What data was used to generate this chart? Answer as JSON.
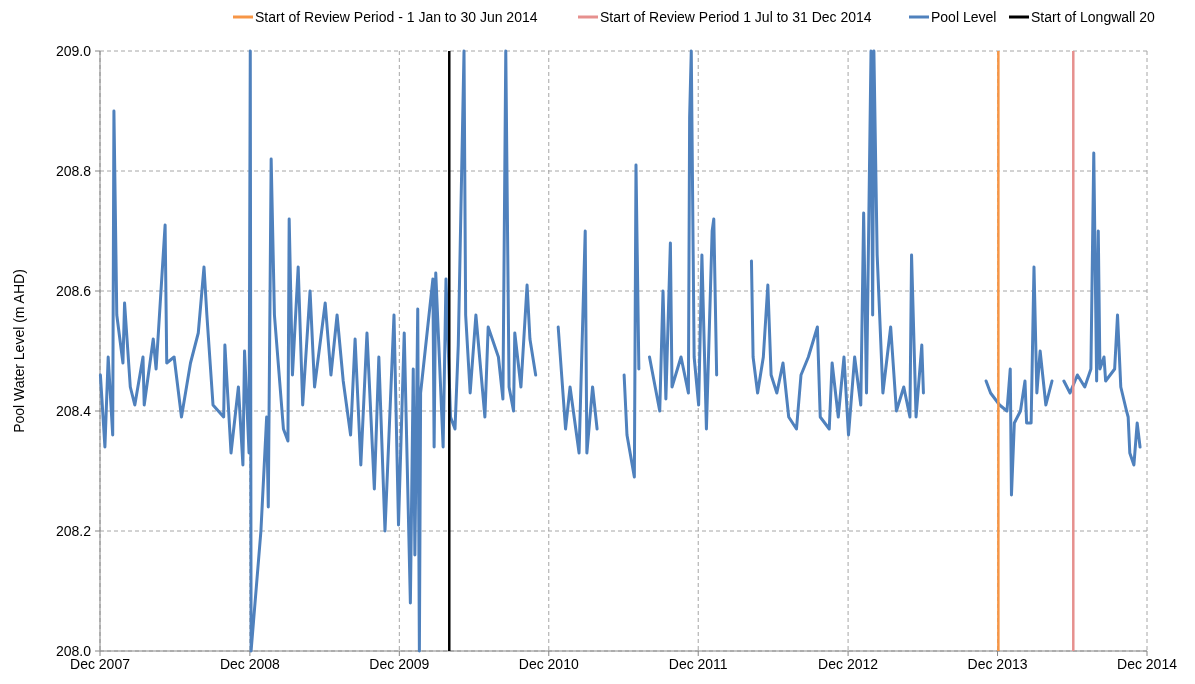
{
  "chart_data": {
    "type": "line",
    "ylabel": "Pool Water Level (m AHD)",
    "xlim": [
      "2007-12-01",
      "2014-12-01"
    ],
    "xticks": [
      {
        "value": "2007-12-01",
        "label": "Dec 2007"
      },
      {
        "value": "2008-12-01",
        "label": "Dec 2008"
      },
      {
        "value": "2009-12-01",
        "label": "Dec 2009"
      },
      {
        "value": "2010-12-01",
        "label": "Dec 2010"
      },
      {
        "value": "2011-12-01",
        "label": "Dec 2011"
      },
      {
        "value": "2012-12-01",
        "label": "Dec 2012"
      },
      {
        "value": "2013-12-01",
        "label": "Dec 2013"
      },
      {
        "value": "2014-12-01",
        "label": "Dec 2014"
      }
    ],
    "ylim": [
      208,
      209
    ],
    "yticks": [
      {
        "value": 208,
        "label": "208.0"
      },
      {
        "value": 208.2,
        "label": "208.2"
      },
      {
        "value": 208.4,
        "label": "208.4"
      },
      {
        "value": 208.6,
        "label": "208.6"
      },
      {
        "value": 208.8,
        "label": "208.8"
      },
      {
        "value": 209,
        "label": "209.0"
      }
    ],
    "grid": true,
    "legend": "top",
    "marker": "none",
    "line_style": "solid",
    "ref_lines": [
      {
        "axis": "x",
        "value": "2013-12-03",
        "label": "Start of Review Period - 1 Jan to 30 Jun 2014",
        "color": "#f79646"
      },
      {
        "axis": "x",
        "value": "2014-06-04",
        "label": "Start of Review Period 1 Jul to 31 Dec 2014",
        "color": "#e6908e"
      },
      {
        "axis": "x",
        "value": "2010-04-02",
        "label": "Start of Longwall 20",
        "color": "#000000"
      }
    ],
    "series": [
      {
        "name": "Pool Level",
        "color": "#4f81bd",
        "x": [
          "2007-12-02",
          "2007-12-13",
          "2007-12-21",
          "2008-01-01",
          "2008-01-04",
          "2008-01-11",
          "2008-01-26",
          "2008-01-30",
          "2008-02-13",
          "2008-02-24",
          "2008-03-15",
          "2008-03-18",
          "2008-04-09",
          "2008-04-16",
          "2008-05-08",
          "2008-05-12",
          "2008-05-30",
          "2008-06-17",
          "2008-07-09",
          "2008-07-28",
          "2008-08-11",
          "2008-08-18",
          "2008-09-02",
          "2008-09-28",
          "2008-10-01",
          "2008-10-16",
          "2008-11-03",
          "2008-11-14",
          "2008-11-18",
          "2008-11-29",
          "2008-12-02",
          "2008-12-04",
          "2008-12-28",
          "2009-01-11",
          "2009-01-15",
          "2009-01-22",
          "2009-01-30",
          "2009-02-21",
          "2009-03-04",
          "2009-03-07",
          "2009-03-15",
          "2009-03-29",
          "2009-04-09",
          "2009-04-27",
          "2009-05-08",
          "2009-06-03",
          "2009-06-17",
          "2009-07-02",
          "2009-07-17",
          "2009-08-04",
          "2009-08-15",
          "2009-08-29",
          "2009-09-13",
          "2009-10-01",
          "2009-10-12",
          "2009-10-27",
          "2009-11-18",
          "2009-11-29",
          "2009-12-13",
          "2009-12-28",
          "2010-01-04",
          "2010-01-08",
          "2010-01-15",
          "2010-01-19",
          "2010-01-22",
          "2010-02-21",
          "2010-02-24",
          "2010-02-28",
          "2010-03-18",
          "2010-03-25",
          "2010-04-05",
          "2010-04-16",
          "2010-04-24",
          "2010-05-08",
          "2010-05-12",
          "2010-05-23",
          "2010-06-06",
          "2010-06-28",
          "2010-07-06",
          "2010-07-31",
          "2010-08-11",
          "2010-08-18",
          "2010-08-26",
          "2010-09-06",
          "2010-09-09",
          "2010-09-24",
          "2010-10-09",
          "2010-10-16",
          "2010-10-30",
          "2010-11-25",
          "2010-12-24",
          "2011-01-11",
          "2011-01-22",
          "2011-02-13",
          "2011-02-28",
          "2011-03-04",
          "2011-03-18",
          "2011-03-29",
          "2011-04-20",
          "2011-06-03",
          "2011-06-10",
          "2011-06-28",
          "2011-07-02",
          "2011-07-09",
          "2011-07-20",
          "2011-08-04",
          "2011-08-29",
          "2011-09-06",
          "2011-09-13",
          "2011-09-24",
          "2011-09-28",
          "2011-10-20",
          "2011-11-07",
          "2011-11-10",
          "2011-11-14",
          "2011-11-21",
          "2011-12-02",
          "2011-12-10",
          "2011-12-21",
          "2012-01-04",
          "2012-01-08",
          "2012-01-15",
          "2012-02-24",
          "2012-04-09",
          "2012-04-13",
          "2012-04-24",
          "2012-05-08",
          "2012-05-19",
          "2012-05-27",
          "2012-06-10",
          "2012-06-25",
          "2012-07-09",
          "2012-07-28",
          "2012-08-08",
          "2012-08-26",
          "2012-09-17",
          "2012-09-24",
          "2012-10-16",
          "2012-10-23",
          "2012-11-07",
          "2012-11-21",
          "2012-12-02",
          "2012-12-17",
          "2013-01-01",
          "2013-01-08",
          "2013-01-15",
          "2013-01-26",
          "2013-01-30",
          "2013-02-02",
          "2013-02-10",
          "2013-02-24",
          "2013-03-15",
          "2013-03-29",
          "2013-04-16",
          "2013-05-01",
          "2013-05-05",
          "2013-05-16",
          "2013-05-30",
          "2013-06-03",
          "2013-08-08",
          "2013-11-03",
          "2013-11-14",
          "2013-12-06",
          "2013-12-24",
          "2014-01-01",
          "2014-01-04",
          "2014-01-11",
          "2014-01-26",
          "2014-02-06",
          "2014-02-10",
          "2014-02-21",
          "2014-02-28",
          "2014-03-07",
          "2014-03-15",
          "2014-03-29",
          "2014-04-13",
          "2014-04-27",
          "2014-05-12",
          "2014-05-27",
          "2014-06-14",
          "2014-07-02",
          "2014-07-17",
          "2014-07-24",
          "2014-07-31",
          "2014-08-04",
          "2014-08-08",
          "2014-08-18",
          "2014-08-22",
          "2014-09-13",
          "2014-09-20",
          "2014-09-28",
          "2014-10-12",
          "2014-10-16",
          "2014-10-20",
          "2014-10-30",
          "2014-11-07",
          "2014-11-14"
        ],
        "values": [
          208.46,
          208.34,
          208.49,
          208.36,
          208.9,
          208.56,
          208.48,
          208.58,
          208.44,
          208.41,
          208.49,
          208.41,
          208.52,
          208.47,
          208.71,
          208.48,
          208.49,
          208.39,
          208.48,
          208.53,
          208.64,
          208.56,
          208.41,
          208.39,
          208.51,
          208.33,
          208.44,
          208.31,
          208.5,
          208.33,
          209.0,
          208.0,
          208.2,
          208.39,
          208.24,
          208.82,
          208.56,
          208.37,
          208.35,
          208.72,
          208.46,
          208.64,
          208.41,
          208.6,
          208.44,
          208.58,
          208.46,
          208.56,
          208.45,
          208.36,
          208.52,
          208.31,
          208.53,
          208.27,
          208.49,
          208.2,
          208.56,
          208.21,
          208.53,
          208.08,
          208.47,
          208.16,
          208.57,
          208.0,
          208.43,
          208.62,
          208.34,
          208.63,
          208.34,
          208.62,
          208.39,
          208.37,
          208.51,
          209.0,
          208.56,
          208.43,
          208.56,
          208.39,
          208.54,
          208.49,
          208.42,
          209.0,
          208.44,
          208.4,
          208.53,
          208.44,
          208.61,
          208.52,
          208.46,
          null,
          208.54,
          208.37,
          208.44,
          208.33,
          208.7,
          208.33,
          208.44,
          208.37,
          null,
          208.46,
          208.36,
          208.29,
          208.81,
          208.47,
          null,
          208.49,
          208.4,
          208.6,
          208.42,
          208.68,
          208.44,
          208.49,
          208.43,
          208.89,
          209.0,
          208.49,
          208.41,
          208.66,
          208.37,
          208.7,
          208.72,
          208.46,
          null,
          208.65,
          208.49,
          208.43,
          208.49,
          208.61,
          208.46,
          208.43,
          208.48,
          208.39,
          208.37,
          208.46,
          208.49,
          208.54,
          208.39,
          208.37,
          208.48,
          208.39,
          208.49,
          208.36,
          208.49,
          208.41,
          208.73,
          208.43,
          209.0,
          208.56,
          209.0,
          208.66,
          208.43,
          208.54,
          208.4,
          208.44,
          208.39,
          208.66,
          208.39,
          208.51,
          208.43,
          null,
          208.45,
          208.43,
          208.41,
          208.4,
          208.47,
          208.26,
          208.38,
          208.4,
          208.45,
          208.38,
          208.38,
          208.64,
          208.43,
          208.5,
          208.41,
          208.45,
          null,
          208.45,
          208.43,
          208.46,
          208.44,
          208.47,
          208.83,
          208.45,
          208.7,
          208.47,
          208.49,
          208.45,
          208.47,
          208.56,
          208.44,
          208.4,
          208.39,
          208.33,
          208.31,
          208.38,
          208.34
        ]
      }
    ]
  }
}
